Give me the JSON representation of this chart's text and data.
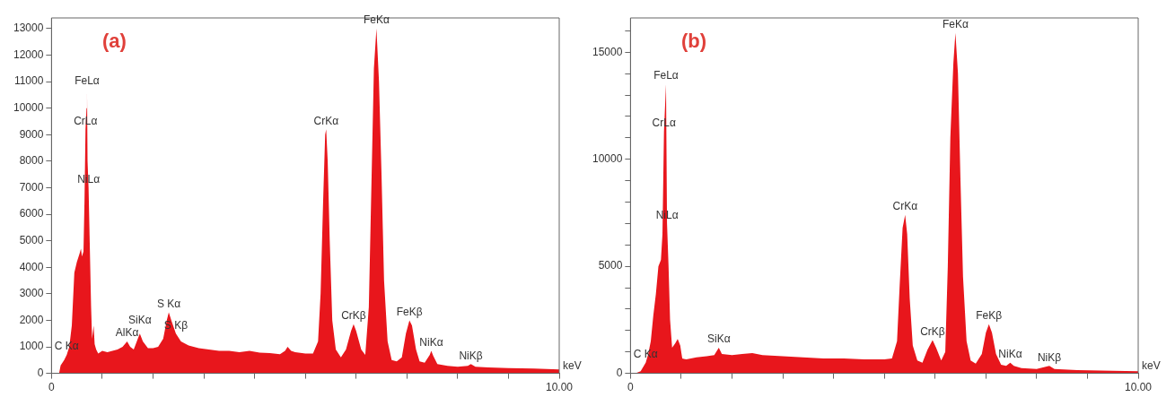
{
  "chart_data": [
    {
      "type": "area",
      "title": "(a)",
      "xlabel": "keV",
      "color": "#e8161c",
      "grid": false,
      "legend": false,
      "marker": "none",
      "x": [
        0.15,
        0.18,
        0.25,
        0.3,
        0.35,
        0.4,
        0.45,
        0.5,
        0.55,
        0.58,
        0.6,
        0.63,
        0.65,
        0.67,
        0.69,
        0.7,
        0.71,
        0.73,
        0.75,
        0.78,
        0.8,
        0.83,
        0.85,
        0.88,
        0.92,
        1.0,
        1.1,
        1.2,
        1.3,
        1.4,
        1.49,
        1.55,
        1.62,
        1.7,
        1.74,
        1.8,
        1.9,
        2.0,
        2.1,
        2.2,
        2.27,
        2.31,
        2.36,
        2.45,
        2.55,
        2.7,
        2.9,
        3.1,
        3.3,
        3.5,
        3.7,
        3.9,
        4.1,
        4.3,
        4.5,
        4.6,
        4.65,
        4.72,
        4.8,
        5.0,
        5.15,
        5.25,
        5.3,
        5.35,
        5.39,
        5.41,
        5.44,
        5.48,
        5.53,
        5.6,
        5.7,
        5.8,
        5.9,
        5.95,
        6.0,
        6.1,
        6.18,
        6.25,
        6.3,
        6.35,
        6.4,
        6.45,
        6.5,
        6.55,
        6.62,
        6.7,
        6.8,
        6.9,
        6.98,
        7.05,
        7.1,
        7.18,
        7.25,
        7.35,
        7.45,
        7.48,
        7.52,
        7.6,
        7.8,
        8.0,
        8.2,
        8.26,
        8.35,
        8.6,
        9.0,
        9.5,
        10.0
      ],
      "values": [
        0,
        300,
        500,
        700,
        1000,
        1800,
        3800,
        4200,
        4500,
        4700,
        4400,
        4600,
        6500,
        9200,
        10000,
        10700,
        8000,
        7000,
        5200,
        2500,
        1300,
        1800,
        1100,
        900,
        750,
        850,
        800,
        850,
        900,
        1000,
        1200,
        1000,
        900,
        1300,
        1500,
        1200,
        950,
        950,
        1000,
        1300,
        2000,
        2300,
        2000,
        1500,
        1200,
        1050,
        950,
        900,
        850,
        850,
        800,
        850,
        780,
        760,
        720,
        850,
        1000,
        850,
        800,
        750,
        750,
        1200,
        3000,
        6500,
        9000,
        9200,
        8000,
        5000,
        2000,
        900,
        600,
        900,
        1600,
        1850,
        1600,
        900,
        700,
        2500,
        7000,
        11500,
        13000,
        11000,
        7500,
        3500,
        1200,
        500,
        450,
        600,
        1500,
        2000,
        1800,
        900,
        450,
        400,
        700,
        850,
        650,
        350,
        280,
        250,
        280,
        350,
        250,
        220,
        200,
        180,
        150
      ],
      "xlim": [
        0,
        10
      ],
      "xticks": [
        0,
        {
          "value": 1,
          "label": null
        },
        {
          "value": 2,
          "label": null
        },
        {
          "value": 3,
          "label": null
        },
        {
          "value": 4,
          "label": null
        },
        {
          "value": 5,
          "label": null
        },
        {
          "value": 6,
          "label": null
        },
        {
          "value": 7,
          "label": null
        },
        {
          "value": 8,
          "label": null
        },
        {
          "value": 9,
          "label": null
        },
        {
          "value": 10,
          "label": "10.00"
        }
      ],
      "ylim": [
        0,
        13400
      ],
      "yticks": [
        0,
        1000,
        2000,
        3000,
        4000,
        5000,
        6000,
        7000,
        8000,
        9000,
        10000,
        11000,
        12000,
        13000
      ],
      "annotations": [
        {
          "text": "C Kα",
          "x": 0.3,
          "y": 700
        },
        {
          "text": "FeLα",
          "x": 0.7,
          "y": 10700
        },
        {
          "text": "CrLα",
          "x": 0.67,
          "y": 9200
        },
        {
          "text": "NiLα",
          "x": 0.73,
          "y": 7000
        },
        {
          "text": "AlKα",
          "x": 1.49,
          "y": 1200
        },
        {
          "text": "SiKα",
          "x": 1.74,
          "y": 1500
        },
        {
          "text": "S Kα",
          "x": 2.31,
          "y": 2300
        },
        {
          "text": "S Kβ",
          "x": 2.45,
          "y": 1500
        },
        {
          "text": "CrKα",
          "x": 5.41,
          "y": 9200
        },
        {
          "text": "FeKα",
          "x": 6.4,
          "y": 13000
        },
        {
          "text": "CrKβ",
          "x": 5.95,
          "y": 1850
        },
        {
          "text": "FeKβ",
          "x": 7.05,
          "y": 2000
        },
        {
          "text": "NiKα",
          "x": 7.48,
          "y": 850
        },
        {
          "text": "NiKβ",
          "x": 8.26,
          "y": 350
        }
      ]
    },
    {
      "type": "area",
      "title": "(b)",
      "xlabel": "keV",
      "color": "#e8161c",
      "grid": false,
      "legend": false,
      "marker": "none",
      "x": [
        0.1,
        0.2,
        0.3,
        0.35,
        0.4,
        0.45,
        0.5,
        0.55,
        0.6,
        0.63,
        0.66,
        0.7,
        0.72,
        0.75,
        0.78,
        0.82,
        0.88,
        0.93,
        0.98,
        1.02,
        1.1,
        1.3,
        1.5,
        1.65,
        1.74,
        1.8,
        2.0,
        2.2,
        2.4,
        2.6,
        3.0,
        3.4,
        3.8,
        4.2,
        4.6,
        5.0,
        5.15,
        5.25,
        5.3,
        5.36,
        5.41,
        5.45,
        5.5,
        5.56,
        5.65,
        5.75,
        5.85,
        5.95,
        6.02,
        6.12,
        6.2,
        6.25,
        6.3,
        6.36,
        6.4,
        6.45,
        6.5,
        6.55,
        6.62,
        6.7,
        6.8,
        6.92,
        7.0,
        7.06,
        7.12,
        7.2,
        7.3,
        7.4,
        7.48,
        7.55,
        7.7,
        8.0,
        8.25,
        8.35,
        8.8,
        9.5,
        10.0
      ],
      "values": [
        0,
        100,
        500,
        900,
        1500,
        2700,
        3700,
        5000,
        5300,
        6500,
        11300,
        13500,
        7000,
        5000,
        2500,
        1200,
        1400,
        1600,
        1300,
        700,
        650,
        750,
        800,
        850,
        1200,
        900,
        850,
        900,
        950,
        850,
        800,
        750,
        700,
        700,
        650,
        650,
        700,
        1500,
        4000,
        6800,
        7400,
        6500,
        3500,
        1300,
        600,
        500,
        1100,
        1550,
        1200,
        600,
        1000,
        5000,
        11000,
        14500,
        15900,
        14000,
        9000,
        4500,
        1500,
        600,
        450,
        900,
        1900,
        2300,
        1900,
        900,
        400,
        350,
        500,
        350,
        250,
        200,
        350,
        200,
        150,
        120,
        100
      ],
      "xlim": [
        0,
        10
      ],
      "xticks": [
        0,
        {
          "value": 1,
          "label": null
        },
        {
          "value": 2,
          "label": null
        },
        {
          "value": 3,
          "label": null
        },
        {
          "value": 4,
          "label": null
        },
        {
          "value": 5,
          "label": null
        },
        {
          "value": 6,
          "label": null
        },
        {
          "value": 7,
          "label": null
        },
        {
          "value": 8,
          "label": null
        },
        {
          "value": 9,
          "label": null
        },
        {
          "value": 10,
          "label": "10.00"
        }
      ],
      "ylim": [
        0,
        16600
      ],
      "yticks": [
        0,
        {
          "value": 1000,
          "label": null
        },
        {
          "value": 2000,
          "label": null
        },
        {
          "value": 3000,
          "label": null
        },
        {
          "value": 4000,
          "label": null
        },
        5000,
        {
          "value": 6000,
          "label": null
        },
        {
          "value": 7000,
          "label": null
        },
        {
          "value": 8000,
          "label": null
        },
        {
          "value": 9000,
          "label": null
        },
        10000,
        {
          "value": 11000,
          "label": null
        },
        {
          "value": 12000,
          "label": null
        },
        {
          "value": 13000,
          "label": null
        },
        {
          "value": 14000,
          "label": null
        },
        15000,
        {
          "value": 16000,
          "label": null
        }
      ],
      "annotations": [
        {
          "text": "C Kα",
          "x": 0.3,
          "y": 500
        },
        {
          "text": "FeLα",
          "x": 0.7,
          "y": 13500
        },
        {
          "text": "CrLα",
          "x": 0.66,
          "y": 11300
        },
        {
          "text": "NiLα",
          "x": 0.72,
          "y": 7000
        },
        {
          "text": "SiKα",
          "x": 1.74,
          "y": 1200
        },
        {
          "text": "CrKα",
          "x": 5.41,
          "y": 7400
        },
        {
          "text": "FeKα",
          "x": 6.4,
          "y": 15900
        },
        {
          "text": "CrKβ",
          "x": 5.95,
          "y": 1550
        },
        {
          "text": "FeKβ",
          "x": 7.06,
          "y": 2300
        },
        {
          "text": "NiKα",
          "x": 7.48,
          "y": 500
        },
        {
          "text": "NiKβ",
          "x": 8.25,
          "y": 350
        }
      ]
    }
  ]
}
